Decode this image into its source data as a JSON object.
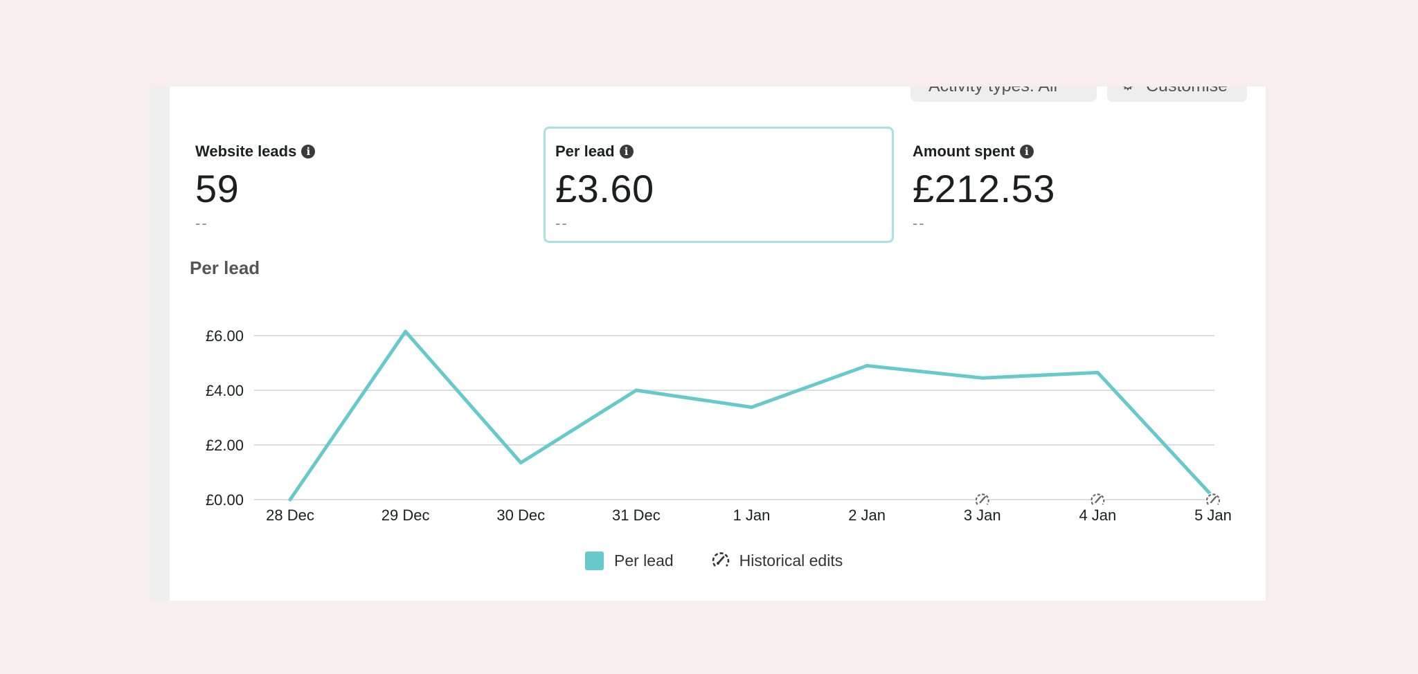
{
  "toolbar": {
    "activity_label": "Activity types: All",
    "customise_label": "Customise"
  },
  "metrics": [
    {
      "label": "Website leads",
      "value": "59",
      "compare": "--"
    },
    {
      "label": "Per lead",
      "value": "£3.60",
      "compare": "--"
    },
    {
      "label": "Amount spent",
      "value": "£212.53",
      "compare": "--"
    }
  ],
  "info_icon_glyph": "i",
  "chart_title": "Per lead",
  "chart_data": {
    "type": "line",
    "title": "Per lead",
    "categories": [
      "28 Dec",
      "29 Dec",
      "30 Dec",
      "31 Dec",
      "1 Jan",
      "2 Jan",
      "3 Jan",
      "4 Jan",
      "5 Jan"
    ],
    "series": [
      {
        "name": "Per lead",
        "values": [
          0.0,
          6.15,
          1.35,
          4.0,
          3.38,
          4.9,
          4.45,
          4.65,
          0.1
        ],
        "color": "#67c9cc"
      }
    ],
    "y_ticks": [
      "£0.00",
      "£2.00",
      "£4.00",
      "£6.00"
    ],
    "y_tick_values": [
      0,
      2,
      4,
      6
    ],
    "ylim": [
      0,
      6
    ],
    "grid": true,
    "historical_edit_markers": [
      "3 Jan",
      "4 Jan",
      "5 Jan"
    ],
    "legend_position": "bottom"
  },
  "legend": {
    "per_lead": "Per lead",
    "historical_edits": "Historical edits"
  },
  "colors": {
    "accent": "#67c9cc",
    "selected_border": "#a8e2e4"
  }
}
